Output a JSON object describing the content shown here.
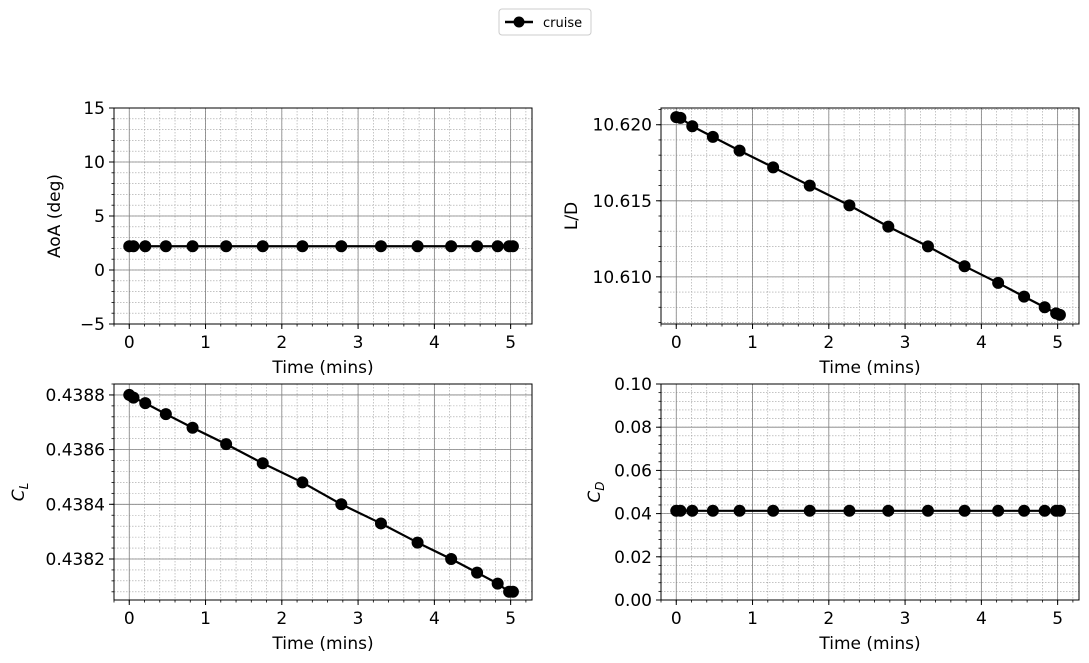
{
  "legend": {
    "entries": [
      "cruise"
    ],
    "placement": "top-center"
  },
  "style": {
    "series_color": "#000000",
    "grid_major": "#808080",
    "grid_minor": "#a0a0a0"
  },
  "chart_data": [
    {
      "type": "line",
      "xlabel": "Time (mins)",
      "ylabel": "AoA (deg)",
      "xlim": [
        -0.2,
        5.28
      ],
      "ylim": [
        -5,
        15
      ],
      "xticks": [
        0,
        1,
        2,
        3,
        4,
        5
      ],
      "xtick_labels": [
        "0",
        "1",
        "2",
        "3",
        "4",
        "5"
      ],
      "yticks": [
        -5,
        0,
        5,
        10,
        15
      ],
      "ytick_labels": [
        "−5",
        "0",
        "5",
        "10",
        "15"
      ],
      "grid": true,
      "series": [
        {
          "x": [
            0.0,
            0.055,
            0.21,
            0.48,
            0.83,
            1.27,
            1.75,
            2.27,
            2.78,
            3.3,
            3.78,
            4.22,
            4.56,
            4.83,
            4.98,
            5.03
          ],
          "y": [
            2.2,
            2.2,
            2.2,
            2.2,
            2.2,
            2.2,
            2.2,
            2.2,
            2.2,
            2.2,
            2.2,
            2.2,
            2.2,
            2.2,
            2.2,
            2.2
          ]
        }
      ]
    },
    {
      "type": "line",
      "xlabel": "Time (mins)",
      "ylabel": "L/D",
      "xlim": [
        -0.2,
        5.28
      ],
      "ylim": [
        10.6069,
        10.6211
      ],
      "xticks": [
        0,
        1,
        2,
        3,
        4,
        5
      ],
      "xtick_labels": [
        "0",
        "1",
        "2",
        "3",
        "4",
        "5"
      ],
      "yticks": [
        10.61,
        10.615,
        10.62
      ],
      "ytick_labels": [
        "10.610",
        "10.615",
        "10.620"
      ],
      "grid": true,
      "series": [
        {
          "x": [
            0.0,
            0.055,
            0.21,
            0.48,
            0.83,
            1.27,
            1.75,
            2.27,
            2.78,
            3.3,
            3.78,
            4.22,
            4.56,
            4.83,
            4.98,
            5.03
          ],
          "y": [
            10.6205,
            10.62045,
            10.6199,
            10.6192,
            10.6183,
            10.6172,
            10.616,
            10.6147,
            10.6133,
            10.612,
            10.6107,
            10.6096,
            10.6087,
            10.608,
            10.6076,
            10.6075
          ]
        }
      ]
    },
    {
      "type": "line",
      "xlabel": "Time (mins)",
      "ylabel": "C_L",
      "xlim": [
        -0.2,
        5.28
      ],
      "ylim": [
        0.43805,
        0.43884
      ],
      "xticks": [
        0,
        1,
        2,
        3,
        4,
        5
      ],
      "xtick_labels": [
        "0",
        "1",
        "2",
        "3",
        "4",
        "5"
      ],
      "yticks": [
        0.4382,
        0.4384,
        0.4386,
        0.4388
      ],
      "ytick_labels": [
        "0.4382",
        "0.4384",
        "0.4386",
        "0.4388"
      ],
      "grid": true,
      "series": [
        {
          "x": [
            0.0,
            0.055,
            0.21,
            0.48,
            0.83,
            1.27,
            1.75,
            2.27,
            2.78,
            3.3,
            3.78,
            4.22,
            4.56,
            4.83,
            4.98,
            5.03
          ],
          "y": [
            0.4388,
            0.43879,
            0.43877,
            0.43873,
            0.43868,
            0.43862,
            0.43855,
            0.43848,
            0.4384,
            0.43833,
            0.43826,
            0.4382,
            0.43815,
            0.43811,
            0.43808,
            0.43808
          ]
        }
      ]
    },
    {
      "type": "line",
      "xlabel": "Time (mins)",
      "ylabel": "C_D",
      "xlim": [
        -0.2,
        5.28
      ],
      "ylim": [
        0.0,
        0.1
      ],
      "xticks": [
        0,
        1,
        2,
        3,
        4,
        5
      ],
      "xtick_labels": [
        "0",
        "1",
        "2",
        "3",
        "4",
        "5"
      ],
      "yticks": [
        0.0,
        0.02,
        0.04,
        0.06,
        0.08,
        0.1
      ],
      "ytick_labels": [
        "0.00",
        "0.02",
        "0.04",
        "0.06",
        "0.08",
        "0.10"
      ],
      "grid": true,
      "series": [
        {
          "x": [
            0.0,
            0.055,
            0.21,
            0.48,
            0.83,
            1.27,
            1.75,
            2.27,
            2.78,
            3.3,
            3.78,
            4.22,
            4.56,
            4.83,
            4.98,
            5.03
          ],
          "y": [
            0.0413,
            0.0413,
            0.0413,
            0.0413,
            0.0413,
            0.0413,
            0.0413,
            0.0413,
            0.0413,
            0.0413,
            0.0413,
            0.0413,
            0.0413,
            0.0413,
            0.0413,
            0.0413
          ]
        }
      ]
    }
  ]
}
